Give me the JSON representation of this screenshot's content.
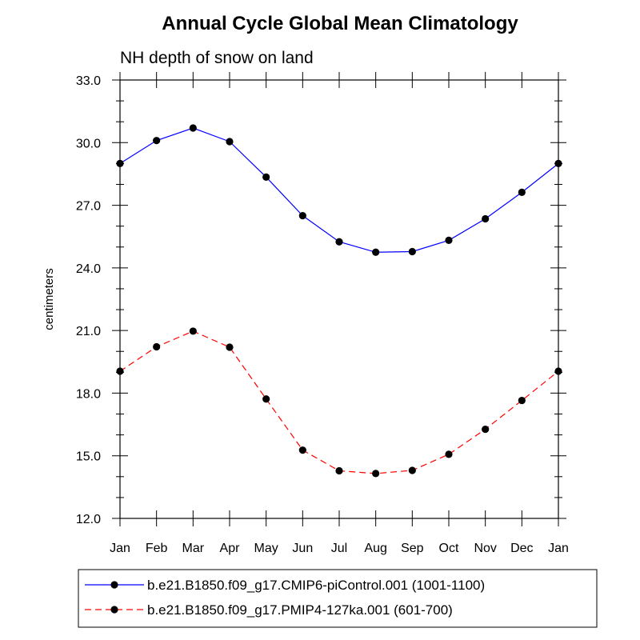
{
  "chart_data": {
    "type": "line",
    "title": "Annual Cycle Global Mean Climatology",
    "subtitle": "NH depth of snow on land",
    "xlabel": "",
    "ylabel": "centimeters",
    "ylim": [
      12.0,
      33.0
    ],
    "yticks": [
      "12.0",
      "15.0",
      "18.0",
      "21.0",
      "24.0",
      "27.0",
      "30.0",
      "33.0"
    ],
    "categories": [
      "Jan",
      "Feb",
      "Mar",
      "Apr",
      "May",
      "Jun",
      "Jul",
      "Aug",
      "Sep",
      "Oct",
      "Nov",
      "Dec",
      "Jan"
    ],
    "grid": false,
    "legend_position": "bottom",
    "series": [
      {
        "name": "b.e21.B1850.f09_g17.CMIP6-piControl.001 (1001-1100)",
        "color": "#0000ff",
        "dash": "solid",
        "values": [
          29.0,
          30.1,
          30.7,
          30.05,
          28.35,
          26.5,
          25.25,
          24.75,
          24.78,
          25.32,
          26.35,
          27.62,
          29.0
        ]
      },
      {
        "name": "b.e21.B1850.f09_g17.PMIP4-127ka.001 (601-700)",
        "color": "#ff0000",
        "dash": "dashed",
        "values": [
          19.05,
          20.22,
          20.97,
          20.2,
          17.72,
          15.27,
          14.28,
          14.15,
          14.3,
          15.07,
          16.27,
          17.65,
          19.05
        ]
      }
    ]
  }
}
